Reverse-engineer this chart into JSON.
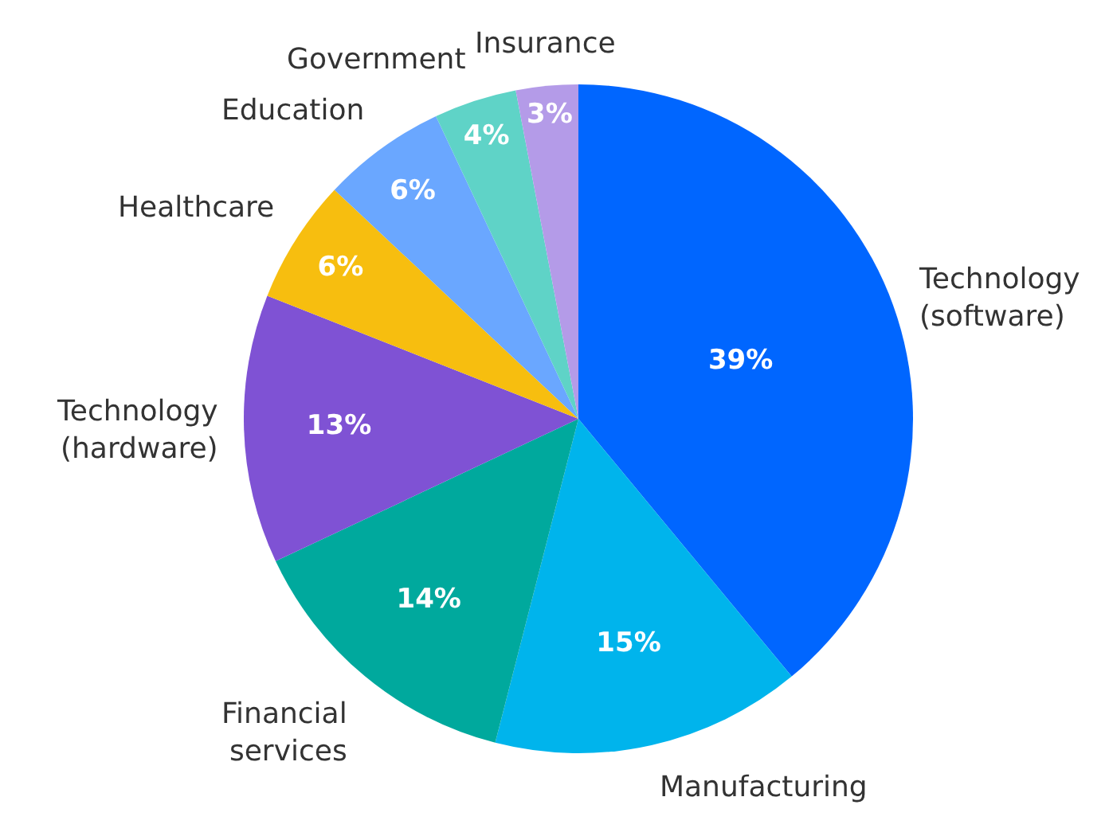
{
  "chart_data": {
    "type": "pie",
    "categories": [
      "Technology\n(software)",
      "Manufacturing",
      "Financial\nservices",
      "Technology\n(hardware)",
      "Healthcare",
      "Education",
      "Government",
      "Insurance"
    ],
    "values": [
      39,
      15,
      14,
      13,
      6,
      6,
      4,
      3
    ],
    "colors": [
      "#0066ff",
      "#00b4ec",
      "#00a99d",
      "#7f52d4",
      "#f7be0f",
      "#6aa7ff",
      "#5fd3c7",
      "#b49be8"
    ],
    "value_labels": [
      "39%",
      "15%",
      "14%",
      "13%",
      "6%",
      "6%",
      "4%",
      "3%"
    ]
  }
}
